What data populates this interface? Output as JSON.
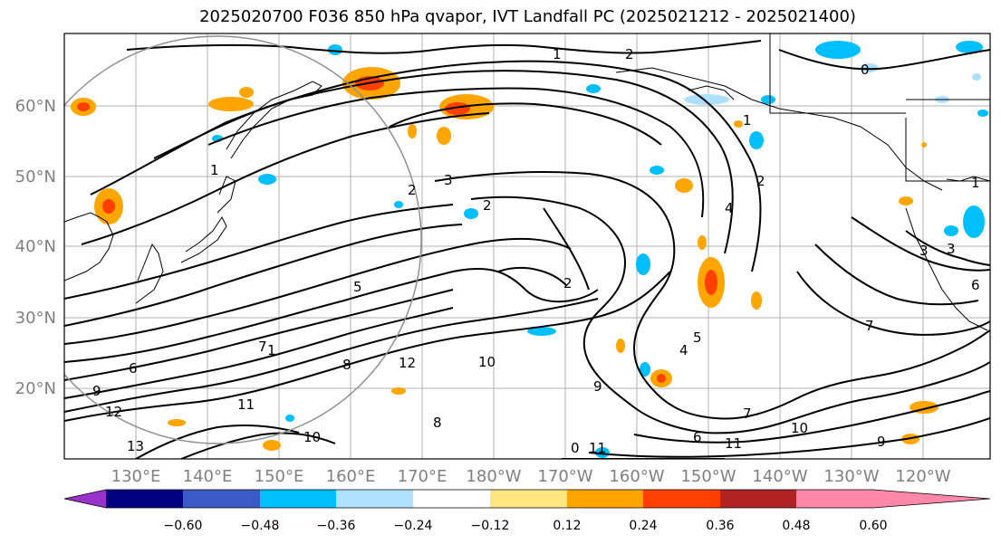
{
  "title": "2025020700 F036 850 hPa qvapor, IVT Landfall PC (2025021212 - 2025021400)",
  "lat_labels": [
    "60°N",
    "50°N",
    "40°N",
    "30°N",
    "20°N"
  ],
  "lon_labels": [
    "130°E",
    "140°E",
    "150°E",
    "160°E",
    "170°E",
    "180°W",
    "170°W",
    "160°W",
    "150°W",
    "140°W",
    "130°W",
    "120°W"
  ],
  "colorbar": {
    "colors": [
      "#9932cc",
      "#000080",
      "#3a5bc7",
      "#00bfff",
      "#b0e0ff",
      "#ffffff",
      "#ffe680",
      "#ffa500",
      "#ff4000",
      "#b22222",
      "#ff88aa"
    ],
    "tick_labels": [
      "−0.60",
      "−0.48",
      "−0.36",
      "−0.24",
      "−0.12",
      "0.12",
      "0.24",
      "0.36",
      "0.48",
      "0.60"
    ]
  },
  "contour_labels": [
    "1",
    "2",
    "3",
    "2",
    "1",
    "3",
    "2",
    "5",
    "6",
    "9",
    "12",
    "7",
    "8",
    "10",
    "12",
    "9",
    "11",
    "13",
    "5",
    "4",
    "2",
    "7",
    "10",
    "6",
    "11",
    "1",
    "3",
    "9",
    "1",
    "0",
    "0",
    "7",
    "8",
    "10",
    "11",
    "1",
    "4",
    "2",
    "6"
  ]
}
